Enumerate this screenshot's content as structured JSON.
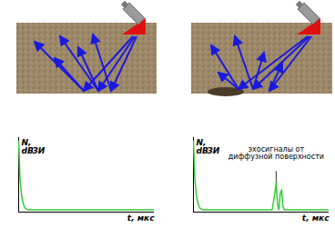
{
  "chart_data": [
    {
      "type": "line",
      "color": "#33cc33",
      "tick_labels": false,
      "xlabel": "t, мкс",
      "ylabel": "N,\ndB",
      "xlim": [
        0,
        100
      ],
      "ylim": [
        0,
        100
      ],
      "x": [
        0,
        0.5,
        1,
        2,
        3,
        4,
        5,
        7,
        100
      ],
      "values": [
        95,
        70,
        45,
        25,
        14,
        8,
        5,
        3,
        3
      ],
      "annotations": [
        {
          "text": "ЗИ",
          "x": 10,
          "y": 82
        }
      ]
    },
    {
      "type": "line",
      "color": "#33cc33",
      "tick_labels": false,
      "xlabel": "t, мкс",
      "ylabel": "N,\ndB",
      "xlim": [
        0,
        100
      ],
      "ylim": [
        0,
        100
      ],
      "x": [
        0,
        0.5,
        1,
        2,
        3,
        4,
        5,
        7,
        58,
        60,
        61,
        62,
        63,
        64,
        65,
        66,
        67,
        100
      ],
      "values": [
        95,
        70,
        45,
        25,
        14,
        8,
        5,
        3,
        3,
        25,
        40,
        10,
        3,
        25,
        30,
        8,
        3,
        3
      ],
      "annotations": [
        {
          "text": "ЗИ",
          "x": 10,
          "y": 82
        },
        {
          "text": "эхосигналы от\nдиффузной поверхности",
          "x": 61,
          "y": 40
        }
      ]
    }
  ]
}
